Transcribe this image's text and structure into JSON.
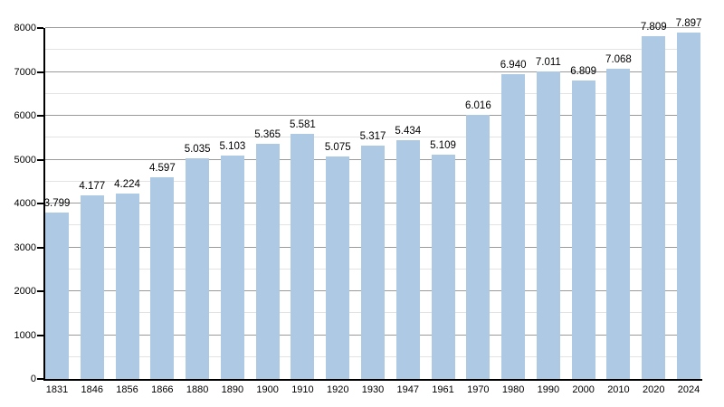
{
  "chart_data": {
    "type": "bar",
    "title": "",
    "xlabel": "",
    "ylabel": "",
    "categories": [
      "1831",
      "1846",
      "1856",
      "1866",
      "1880",
      "1890",
      "1900",
      "1910",
      "1920",
      "1930",
      "1947",
      "1961",
      "1970",
      "1980",
      "1990",
      "2000",
      "2010",
      "2020",
      "2024"
    ],
    "values": [
      3799,
      4177,
      4224,
      4597,
      5035,
      5103,
      5365,
      5581,
      5075,
      5317,
      5434,
      5109,
      6016,
      6940,
      7011,
      6809,
      7068,
      7809,
      7897
    ],
    "value_labels": [
      "3.799",
      "4.177",
      "4.224",
      "4.597",
      "5.035",
      "5.103",
      "5.365",
      "5.581",
      "5.075",
      "5.317",
      "5.434",
      "5.109",
      "6.016",
      "6.940",
      "7.011",
      "6.809",
      "7.068",
      "7.809",
      "7.897"
    ],
    "y_tick_labels": [
      "0",
      "1000",
      "2000",
      "3000",
      "4000",
      "5000",
      "6000",
      "7000",
      "8000"
    ],
    "ylim": [
      0,
      8000
    ],
    "y_major_step": 1000,
    "y_minor_step": 500,
    "grid": "on",
    "legend": "none",
    "colors": {
      "bar_fill": "#adc9e3",
      "grid_major": "#9a9a9a",
      "grid_minor": "#e3e3e3",
      "axis": "#000000",
      "text": "#000000",
      "background": "#ffffff"
    }
  }
}
